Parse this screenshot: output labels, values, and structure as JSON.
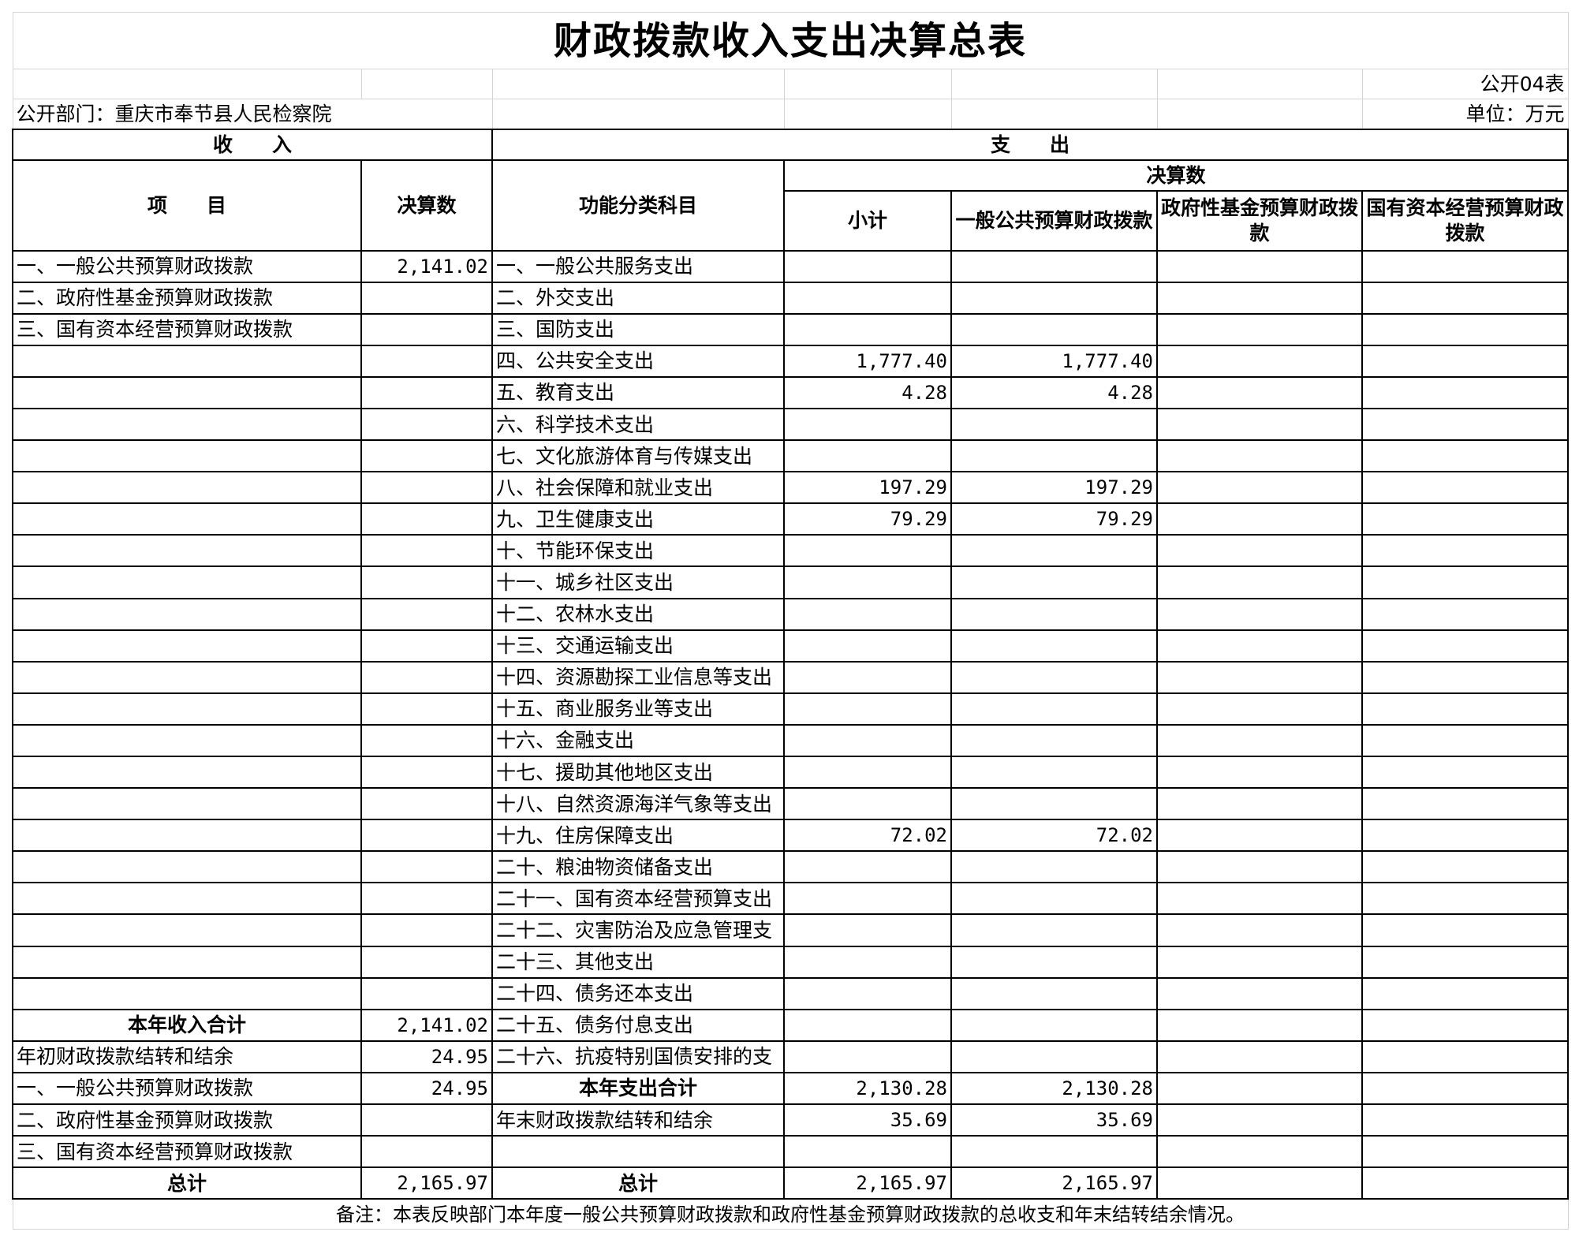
{
  "title": "财政拨款收入支出决算总表",
  "table_code": "公开04表",
  "department": "公开部门：重庆市奉节县人民检察院",
  "unit": "单位：万元",
  "headers": {
    "income": "收　　入",
    "expense": "支　　出",
    "item": "项　　目",
    "amount": "决算数",
    "function_category": "功能分类科目",
    "final_amount": "决算数",
    "subtotal": "小计",
    "general_budget": "一般公共预算财政拨款",
    "gov_fund": "政府性基金预算财政拨款",
    "state_capital": "国有资本经营预算财政拨款"
  },
  "rows": [
    {
      "income_item": "一、一般公共预算财政拨款",
      "income_amount": "2,141.02",
      "expense_item": "一、一般公共服务支出",
      "subtotal": "",
      "general": "",
      "fund": "",
      "capital": ""
    },
    {
      "income_item": "二、政府性基金预算财政拨款",
      "income_amount": "",
      "expense_item": "二、外交支出",
      "subtotal": "",
      "general": "",
      "fund": "",
      "capital": ""
    },
    {
      "income_item": "三、国有资本经营预算财政拨款",
      "income_amount": "",
      "expense_item": "三、国防支出",
      "subtotal": "",
      "general": "",
      "fund": "",
      "capital": ""
    },
    {
      "income_item": "",
      "income_amount": "",
      "expense_item": "四、公共安全支出",
      "subtotal": "1,777.40",
      "general": "1,777.40",
      "fund": "",
      "capital": ""
    },
    {
      "income_item": "",
      "income_amount": "",
      "expense_item": "五、教育支出",
      "subtotal": "4.28",
      "general": "4.28",
      "fund": "",
      "capital": ""
    },
    {
      "income_item": "",
      "income_amount": "",
      "expense_item": "六、科学技术支出",
      "subtotal": "",
      "general": "",
      "fund": "",
      "capital": ""
    },
    {
      "income_item": "",
      "income_amount": "",
      "expense_item": "七、文化旅游体育与传媒支出",
      "subtotal": "",
      "general": "",
      "fund": "",
      "capital": ""
    },
    {
      "income_item": "",
      "income_amount": "",
      "expense_item": "八、社会保障和就业支出",
      "subtotal": "197.29",
      "general": "197.29",
      "fund": "",
      "capital": ""
    },
    {
      "income_item": "",
      "income_amount": "",
      "expense_item": "九、卫生健康支出",
      "subtotal": "79.29",
      "general": "79.29",
      "fund": "",
      "capital": ""
    },
    {
      "income_item": "",
      "income_amount": "",
      "expense_item": "十、节能环保支出",
      "subtotal": "",
      "general": "",
      "fund": "",
      "capital": ""
    },
    {
      "income_item": "",
      "income_amount": "",
      "expense_item": "十一、城乡社区支出",
      "subtotal": "",
      "general": "",
      "fund": "",
      "capital": ""
    },
    {
      "income_item": "",
      "income_amount": "",
      "expense_item": "十二、农林水支出",
      "subtotal": "",
      "general": "",
      "fund": "",
      "capital": ""
    },
    {
      "income_item": "",
      "income_amount": "",
      "expense_item": "十三、交通运输支出",
      "subtotal": "",
      "general": "",
      "fund": "",
      "capital": ""
    },
    {
      "income_item": "",
      "income_amount": "",
      "expense_item": "十四、资源勘探工业信息等支出",
      "subtotal": "",
      "general": "",
      "fund": "",
      "capital": ""
    },
    {
      "income_item": "",
      "income_amount": "",
      "expense_item": "十五、商业服务业等支出",
      "subtotal": "",
      "general": "",
      "fund": "",
      "capital": ""
    },
    {
      "income_item": "",
      "income_amount": "",
      "expense_item": "十六、金融支出",
      "subtotal": "",
      "general": "",
      "fund": "",
      "capital": ""
    },
    {
      "income_item": "",
      "income_amount": "",
      "expense_item": "十七、援助其他地区支出",
      "subtotal": "",
      "general": "",
      "fund": "",
      "capital": ""
    },
    {
      "income_item": "",
      "income_amount": "",
      "expense_item": "十八、自然资源海洋气象等支出",
      "subtotal": "",
      "general": "",
      "fund": "",
      "capital": ""
    },
    {
      "income_item": "",
      "income_amount": "",
      "expense_item": "十九、住房保障支出",
      "subtotal": "72.02",
      "general": "72.02",
      "fund": "",
      "capital": ""
    },
    {
      "income_item": "",
      "income_amount": "",
      "expense_item": "二十、粮油物资储备支出",
      "subtotal": "",
      "general": "",
      "fund": "",
      "capital": ""
    },
    {
      "income_item": "",
      "income_amount": "",
      "expense_item": "二十一、国有资本经营预算支出",
      "subtotal": "",
      "general": "",
      "fund": "",
      "capital": ""
    },
    {
      "income_item": "",
      "income_amount": "",
      "expense_item": "二十二、灾害防治及应急管理支",
      "subtotal": "",
      "general": "",
      "fund": "",
      "capital": ""
    },
    {
      "income_item": "",
      "income_amount": "",
      "expense_item": "二十三、其他支出",
      "subtotal": "",
      "general": "",
      "fund": "",
      "capital": ""
    },
    {
      "income_item": "",
      "income_amount": "",
      "expense_item": "二十四、债务还本支出",
      "subtotal": "",
      "general": "",
      "fund": "",
      "capital": ""
    },
    {
      "income_item": "本年收入合计",
      "income_bold": true,
      "income_amount": "2,141.02",
      "expense_item": "二十五、债务付息支出",
      "subtotal": "",
      "general": "",
      "fund": "",
      "capital": ""
    },
    {
      "income_item": "年初财政拨款结转和结余",
      "income_amount": "24.95",
      "expense_item": "二十六、抗疫特别国债安排的支",
      "subtotal": "",
      "general": "",
      "fund": "",
      "capital": ""
    },
    {
      "income_item": "一、一般公共预算财政拨款",
      "income_amount": "24.95",
      "expense_item": "本年支出合计",
      "expense_bold": true,
      "subtotal": "2,130.28",
      "general": "2,130.28",
      "fund": "",
      "capital": ""
    },
    {
      "income_item": "二、政府性基金预算财政拨款",
      "income_amount": "",
      "expense_item": "年末财政拨款结转和结余",
      "subtotal": "35.69",
      "general": "35.69",
      "fund": "",
      "capital": ""
    },
    {
      "income_item": "三、国有资本经营预算财政拨款",
      "income_amount": "",
      "expense_item": "",
      "subtotal": "",
      "general": "",
      "fund": "",
      "capital": ""
    },
    {
      "income_item": "总计",
      "income_bold": true,
      "income_amount": "2,165.97",
      "expense_item": "总计",
      "expense_bold": true,
      "subtotal": "2,165.97",
      "general": "2,165.97",
      "fund": "",
      "capital": ""
    }
  ],
  "note": "备注：本表反映部门本年度一般公共预算财政拨款和政府性基金预算财政拨款的总收支和年末结转结余情况。"
}
